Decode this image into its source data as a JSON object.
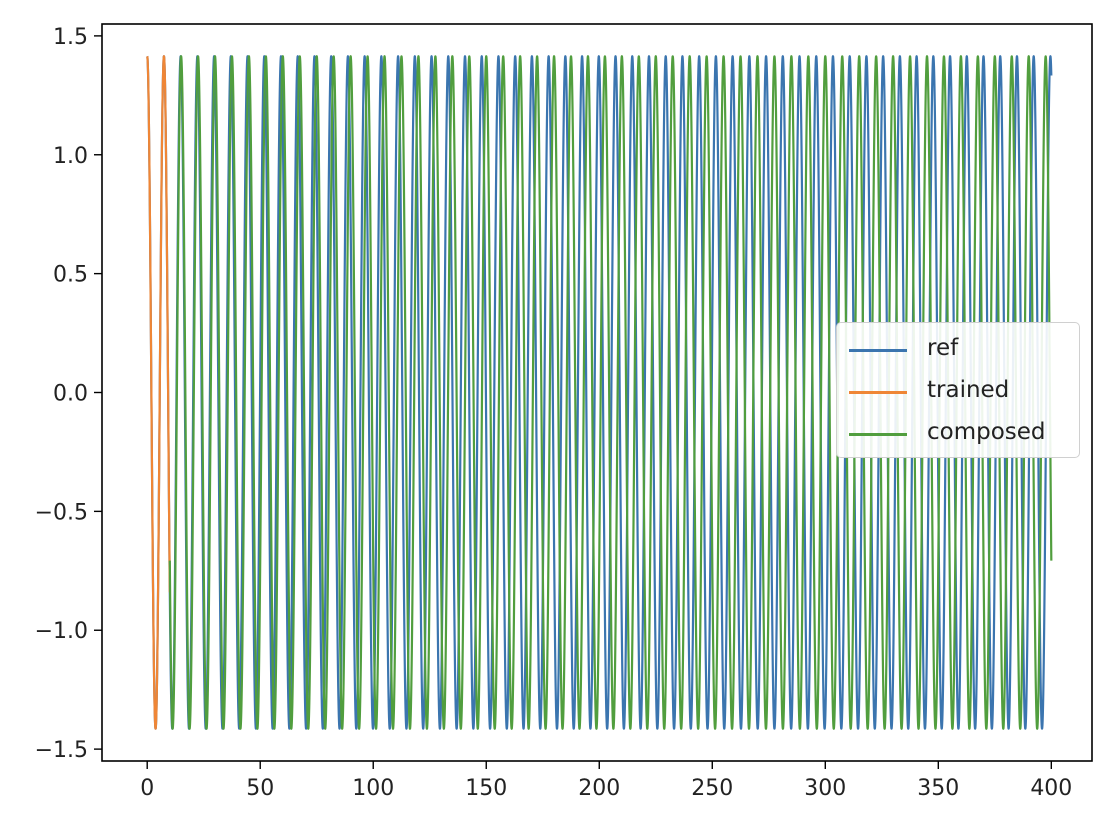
{
  "chart_data": {
    "type": "line",
    "title": "",
    "xlabel": "",
    "ylabel": "",
    "xlim": [
      -20,
      418
    ],
    "ylim": [
      -1.55,
      1.55
    ],
    "x_ticks": [
      0,
      50,
      100,
      150,
      200,
      250,
      300,
      350,
      400
    ],
    "x_tick_labels": [
      "0",
      "50",
      "100",
      "150",
      "200",
      "250",
      "300",
      "350",
      "400"
    ],
    "y_ticks": [
      1.5,
      1.0,
      0.5,
      0.0,
      -0.5,
      -1.0,
      -1.5
    ],
    "y_tick_labels": [
      "1.5",
      "1.0",
      "0.5",
      "0.0",
      "−0.5",
      "−1.0",
      "−1.5"
    ],
    "grid": false,
    "legend_position": "center-right",
    "series": [
      {
        "name": "ref",
        "color": "#3b75af",
        "function": "1.4142 * cos(2*pi*t/7.4)",
        "x_range": [
          0,
          400
        ],
        "amplitude": 1.4142,
        "period": 7.4
      },
      {
        "name": "trained",
        "color": "#ef8636",
        "function": "1.4142 * cos(2*pi*t/7.4)",
        "x_range": [
          0,
          10
        ],
        "amplitude": 1.4142,
        "period": 7.4
      },
      {
        "name": "composed",
        "color": "#519e3e",
        "function": "1.4142 * cos(2*pi*t/7.5)",
        "x_range": [
          10,
          400
        ],
        "amplitude": 1.4142,
        "period": 7.5
      }
    ]
  }
}
